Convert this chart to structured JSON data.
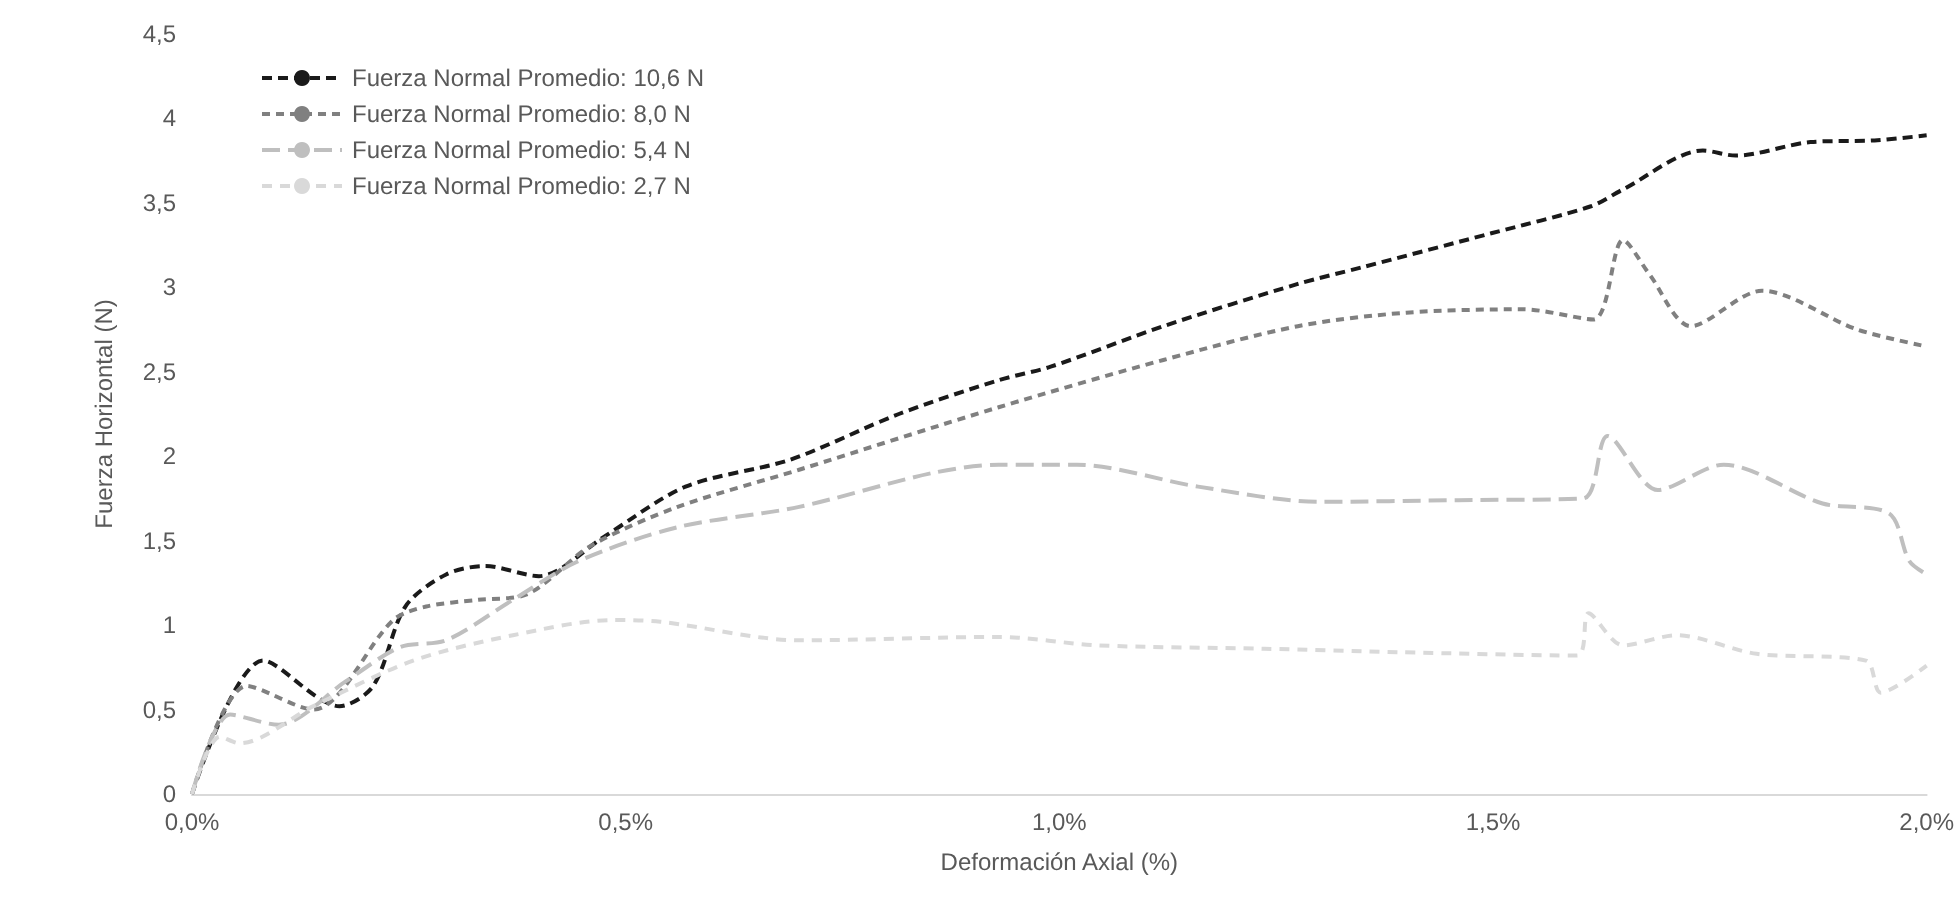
{
  "chart_data": {
    "type": "line",
    "xlabel": "Deformación Axial (%)",
    "ylabel": "Fuerza Horizontal (N)",
    "xlim": [
      0,
      2
    ],
    "xticks": [
      {
        "value": 0,
        "label": "0,0%"
      },
      {
        "value": 0.5,
        "label": "0,5%"
      },
      {
        "value": 1,
        "label": "1,0%"
      },
      {
        "value": 1.5,
        "label": "1,5%"
      },
      {
        "value": 2,
        "label": "2,0%"
      }
    ],
    "ylim": [
      0,
      4.5
    ],
    "yticks": [
      0,
      {
        "value": 0.5,
        "label": "0,5"
      },
      1,
      {
        "value": 1.5,
        "label": "1,5"
      },
      2,
      {
        "value": 2.5,
        "label": "2,5"
      },
      3,
      {
        "value": 3.5,
        "label": "3,5"
      },
      4,
      {
        "value": 4.5,
        "label": "4,5"
      }
    ],
    "grid": false,
    "legend": "top left",
    "line_style": "dashed",
    "marker": "none",
    "series": [
      {
        "name": "Fuerza Normal Promedio: 10,6 N",
        "color": "#1a1a1a",
        "x": [
          0,
          0.082,
          0.17,
          0.209,
          0.246,
          0.293,
          0.338,
          0.4,
          0.477,
          0.569,
          0.69,
          0.815,
          0.93,
          0.99,
          1.12,
          1.275,
          1.35,
          1.498,
          1.613,
          1.65,
          1.742,
          1.78,
          1.866,
          1.94,
          2.0
        ],
        "values": [
          0,
          0.79,
          0.52,
          0.64,
          1.11,
          1.3,
          1.35,
          1.29,
          1.53,
          1.82,
          1.98,
          2.25,
          2.45,
          2.53,
          2.77,
          3.02,
          3.12,
          3.32,
          3.48,
          3.58,
          3.81,
          3.78,
          3.86,
          3.87,
          3.9
        ]
      },
      {
        "name": "Fuerza Normal Promedio: 8,0 N",
        "color": "#808080",
        "x": [
          0,
          0.063,
          0.14,
          0.232,
          0.27,
          0.33,
          0.385,
          0.46,
          0.56,
          0.7,
          0.93,
          1.12,
          1.275,
          1.4,
          1.535,
          1.616,
          1.65,
          1.68,
          1.728,
          1.81,
          1.92,
          2.0
        ],
        "values": [
          0,
          0.64,
          0.5,
          1.03,
          1.11,
          1.15,
          1.18,
          1.47,
          1.7,
          1.92,
          2.29,
          2.57,
          2.77,
          2.85,
          2.87,
          2.81,
          3.28,
          3.08,
          2.77,
          2.98,
          2.75,
          2.65
        ]
      },
      {
        "name": "Fuerza Normal Promedio: 5,4 N",
        "color": "#bfbfbf",
        "x": [
          0,
          0.044,
          0.1,
          0.178,
          0.24,
          0.293,
          0.37,
          0.446,
          0.56,
          0.7,
          0.853,
          0.93,
          1.02,
          1.16,
          1.3,
          1.46,
          1.604,
          1.632,
          1.69,
          1.766,
          1.88,
          1.957,
          1.98,
          2.0
        ],
        "values": [
          0,
          0.47,
          0.41,
          0.67,
          0.87,
          0.91,
          1.15,
          1.38,
          1.58,
          1.7,
          1.9,
          1.95,
          1.95,
          1.82,
          1.73,
          1.74,
          1.75,
          2.12,
          1.8,
          1.95,
          1.72,
          1.66,
          1.38,
          1.3
        ]
      },
      {
        "name": "Fuerza Normal Promedio: 2,7 N",
        "color": "#d9d9d9",
        "x": [
          0,
          0.032,
          0.055,
          0.14,
          0.255,
          0.37,
          0.485,
          0.54,
          0.7,
          0.93,
          1.045,
          1.236,
          1.39,
          1.597,
          1.61,
          1.65,
          1.712,
          1.804,
          1.93,
          1.947,
          2.0
        ],
        "values": [
          0,
          0.34,
          0.3,
          0.52,
          0.79,
          0.94,
          1.03,
          1.02,
          0.91,
          0.93,
          0.88,
          0.86,
          0.84,
          0.82,
          1.07,
          0.88,
          0.94,
          0.83,
          0.79,
          0.6,
          0.76
        ]
      }
    ]
  }
}
